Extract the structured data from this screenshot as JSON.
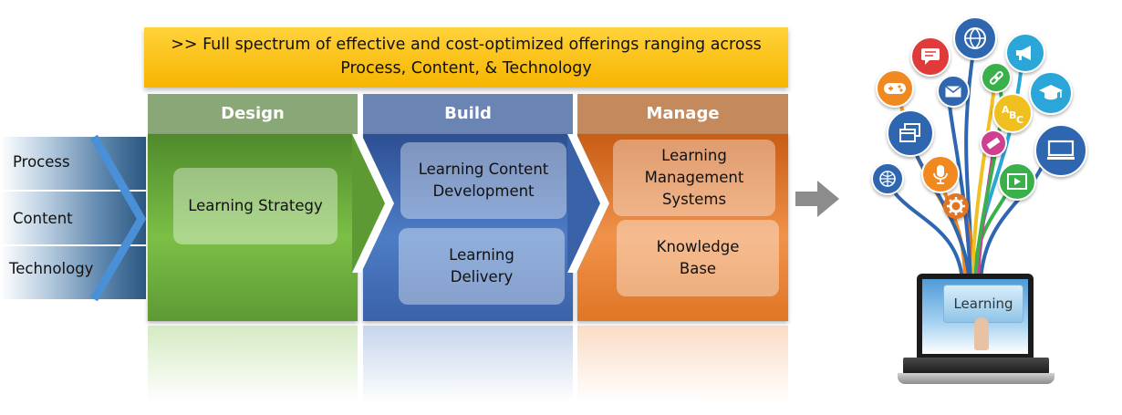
{
  "banner": {
    "line1": ">> Full spectrum of effective and cost-optimized offerings ranging across",
    "line2": "Process, Content, & Technology"
  },
  "inputs": [
    "Process",
    "Content",
    "Technology"
  ],
  "columns": [
    {
      "title": "Design",
      "cards": [
        "Learning Strategy"
      ]
    },
    {
      "title": "Build",
      "cards": [
        "Learning Content Development",
        "Learning Delivery"
      ]
    },
    {
      "title": "Manage",
      "cards": [
        "Learning Management Systems",
        "Knowledge Base"
      ]
    }
  ],
  "laptop": {
    "screen_label": "Learning"
  },
  "colors": {
    "design": "#5e9a34",
    "build": "#3a62a8",
    "manage": "#e07525",
    "banner": "#f9c21a"
  }
}
